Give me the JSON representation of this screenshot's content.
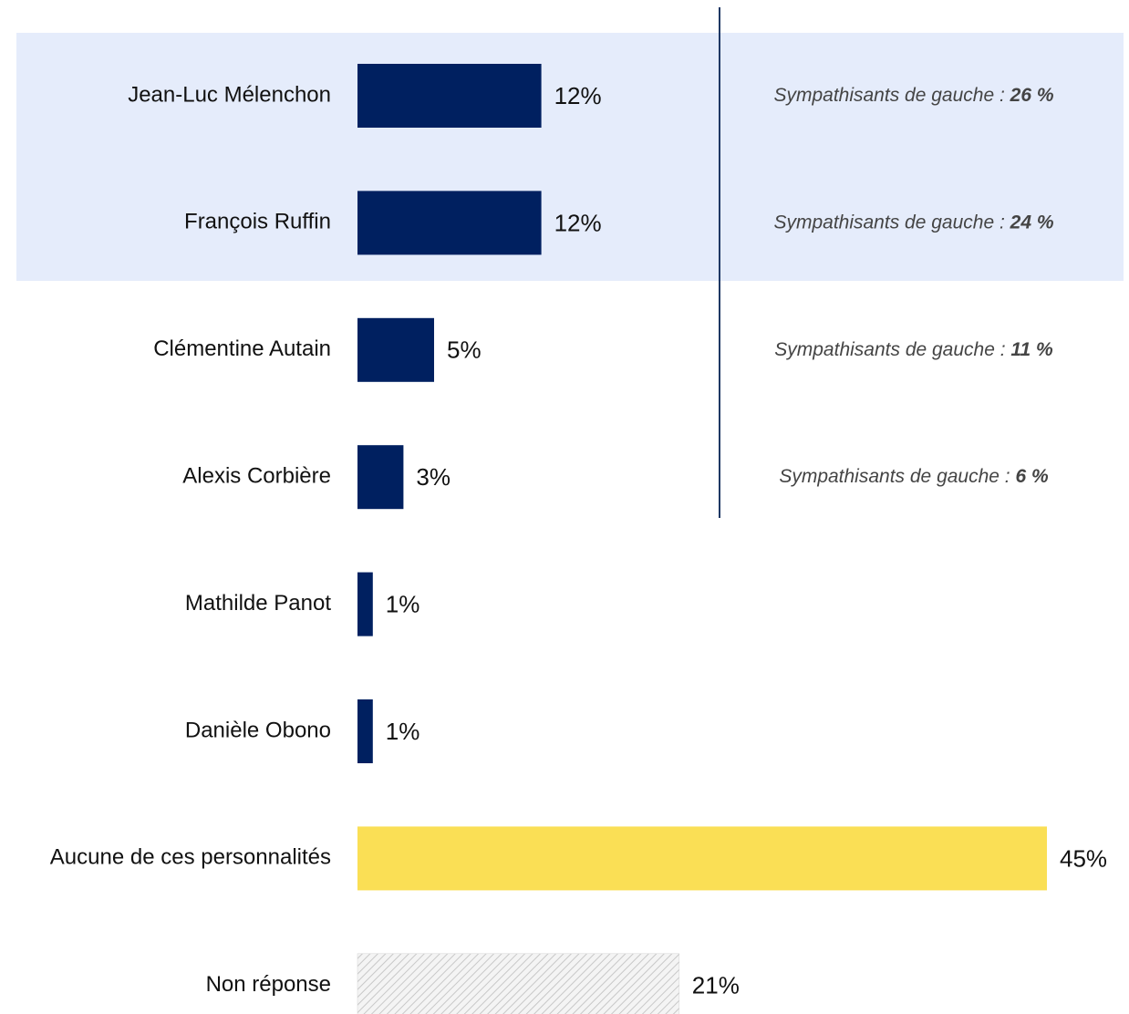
{
  "chart_data": {
    "type": "hbar",
    "categories": [
      "Jean-Luc Mélenchon",
      "François Ruffin",
      "Clémentine Autain",
      "Alexis Corbière",
      "Mathilde Panot",
      "Danièle Obono",
      "Aucune de ces personnalités",
      "Non réponse"
    ],
    "values": [
      12,
      12,
      5,
      3,
      1,
      1,
      45,
      21
    ],
    "value_labels": [
      "12%",
      "12%",
      "5%",
      "3%",
      "1%",
      "1%",
      "45%",
      "21%"
    ],
    "colors": [
      "#002060",
      "#002060",
      "#002060",
      "#002060",
      "#002060",
      "#002060",
      "#FADF55",
      "#d4d4d4"
    ],
    "hatched": [
      false,
      false,
      false,
      false,
      false,
      false,
      false,
      true
    ],
    "annotations": [
      {
        "text": "Sympathisants de gauche :",
        "value": 26,
        "label": "26 %"
      },
      {
        "text": "Sympathisants de gauche :",
        "value": 24,
        "label": "24 %"
      },
      {
        "text": "Sympathisants de gauche :",
        "value": 11,
        "label": "11 %"
      },
      {
        "text": "Sympathisants de gauche :",
        "value": 6,
        "label": "6 %"
      }
    ]
  }
}
